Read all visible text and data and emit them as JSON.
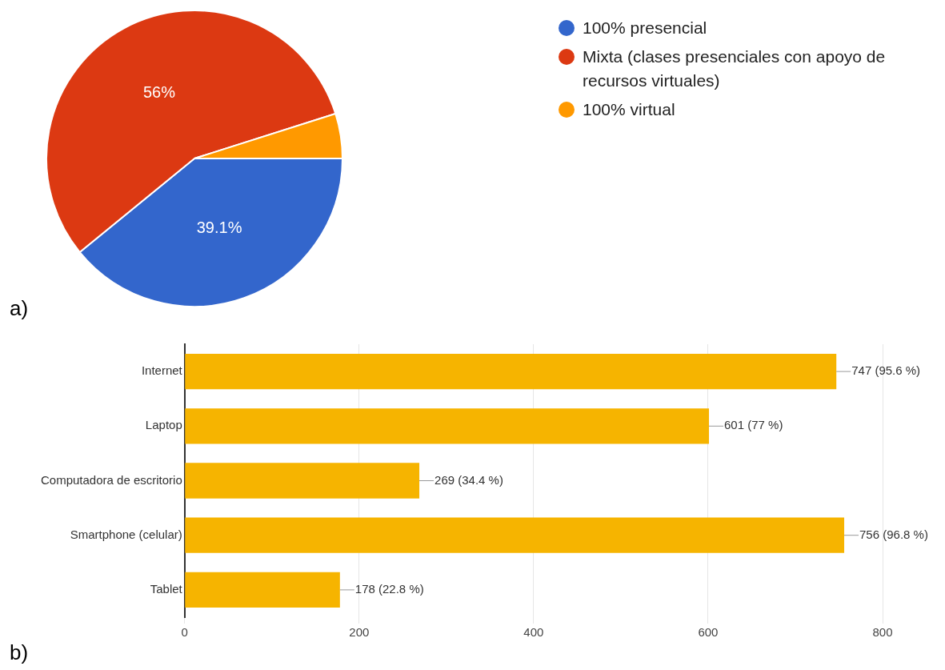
{
  "chart_data": [
    {
      "type": "pie",
      "categories": [
        "100% presencial",
        "Mixta (clases presenciales con apoyo de recursos virtuales)",
        "100% virtual"
      ],
      "values": [
        39.1,
        56,
        4.9
      ],
      "colors": [
        "#3366cc",
        "#dc3912",
        "#ff9900"
      ],
      "value_labels": [
        "39.1%",
        "56%",
        null
      ],
      "legend": "right",
      "annotations": [
        "a)"
      ]
    },
    {
      "type": "bar",
      "orientation": "horizontal",
      "categories": [
        "Internet",
        "Laptop",
        "Computadora de escritorio",
        "Smartphone (celular)",
        "Tablet"
      ],
      "values": [
        747,
        601,
        269,
        756,
        178
      ],
      "color": "#f6b400",
      "value_labels": [
        "747 (95.6 %)",
        "601 (77 %)",
        "269 (34.4 %)",
        "756 (96.8 %)",
        "178 (22.8 %)"
      ],
      "xlim": [
        0,
        800
      ],
      "xticks": [
        0,
        200,
        400,
        600,
        800
      ],
      "grid": "x",
      "annotations": [
        "b)"
      ]
    }
  ]
}
